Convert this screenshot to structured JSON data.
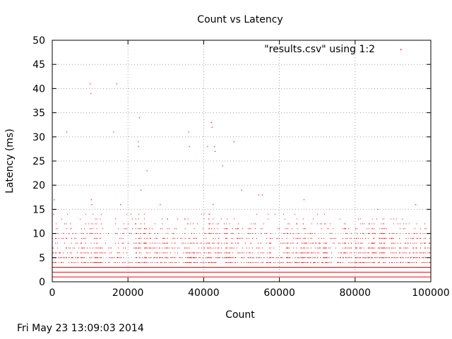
{
  "chart_data": {
    "type": "scatter",
    "title": "Count vs Latency",
    "xlabel": "Count",
    "ylabel": "Latency (ms)",
    "xlim": [
      0,
      100000
    ],
    "ylim": [
      0,
      50
    ],
    "xticks": [
      0,
      20000,
      40000,
      60000,
      80000,
      100000
    ],
    "yticks": [
      0,
      5,
      10,
      15,
      20,
      25,
      30,
      35,
      40,
      45,
      50
    ],
    "grid": true,
    "legend_position": "top-right",
    "series": [
      {
        "name": "\"results.csv\" using 1:2",
        "color": "#ff0000",
        "baseline_levels": [
          1,
          2,
          3
        ],
        "band_levels": [
          4,
          5,
          6,
          7,
          8,
          9,
          10,
          11,
          12,
          13,
          14
        ],
        "clusters": [
          {
            "x": [
              0,
              4000
            ],
            "y": [
              3,
              13
            ]
          },
          {
            "x": [
              5000,
              9000
            ],
            "y": [
              3,
              11
            ]
          },
          {
            "x": [
              10000,
              13000
            ],
            "y": [
              3,
              13
            ]
          },
          {
            "x": [
              17000,
              19000
            ],
            "y": [
              3,
              10
            ]
          },
          {
            "x": [
              22000,
              26000
            ],
            "y": [
              3,
              14
            ]
          },
          {
            "x": [
              27000,
              29000
            ],
            "y": [
              3,
              12
            ]
          },
          {
            "x": [
              29000,
              33000
            ],
            "y": [
              3,
              13
            ]
          },
          {
            "x": [
              35000,
              38000
            ],
            "y": [
              3,
              14
            ]
          },
          {
            "x": [
              40000,
              44000
            ],
            "y": [
              3,
              14
            ]
          },
          {
            "x": [
              45000,
              49000
            ],
            "y": [
              3,
              14
            ]
          },
          {
            "x": [
              51000,
              53000
            ],
            "y": [
              3,
              13
            ]
          },
          {
            "x": [
              55000,
              58000
            ],
            "y": [
              3,
              14
            ]
          },
          {
            "x": [
              60000,
              62000
            ],
            "y": [
              3,
              12
            ]
          },
          {
            "x": [
              62000,
              66000
            ],
            "y": [
              3,
              13
            ]
          },
          {
            "x": [
              66000,
              69000
            ],
            "y": [
              3,
              14
            ]
          },
          {
            "x": [
              69000,
              73000
            ],
            "y": [
              3,
              12
            ]
          },
          {
            "x": [
              75000,
              79000
            ],
            "y": [
              3,
              11
            ]
          },
          {
            "x": [
              80000,
              84000
            ],
            "y": [
              3,
              13
            ]
          },
          {
            "x": [
              84000,
              88000
            ],
            "y": [
              3,
              14
            ]
          },
          {
            "x": [
              89000,
              92000
            ],
            "y": [
              3,
              13
            ]
          },
          {
            "x": [
              93000,
              97000
            ],
            "y": [
              3,
              14
            ]
          },
          {
            "x": [
              97000,
              100000
            ],
            "y": [
              3,
              12
            ]
          }
        ],
        "outliers": [
          {
            "x": 500,
            "y": 20
          },
          {
            "x": 500,
            "y": 17
          },
          {
            "x": 3800,
            "y": 31
          },
          {
            "x": 10000,
            "y": 41
          },
          {
            "x": 10200,
            "y": 39
          },
          {
            "x": 10300,
            "y": 17
          },
          {
            "x": 10400,
            "y": 16
          },
          {
            "x": 16200,
            "y": 31
          },
          {
            "x": 17000,
            "y": 41
          },
          {
            "x": 18000,
            "y": 16
          },
          {
            "x": 22700,
            "y": 29
          },
          {
            "x": 22800,
            "y": 28
          },
          {
            "x": 23000,
            "y": 34
          },
          {
            "x": 23400,
            "y": 19
          },
          {
            "x": 25000,
            "y": 23
          },
          {
            "x": 28500,
            "y": 16
          },
          {
            "x": 36000,
            "y": 31
          },
          {
            "x": 36200,
            "y": 28
          },
          {
            "x": 41000,
            "y": 28
          },
          {
            "x": 42000,
            "y": 33
          },
          {
            "x": 42200,
            "y": 32
          },
          {
            "x": 42500,
            "y": 16
          },
          {
            "x": 42800,
            "y": 28
          },
          {
            "x": 43000,
            "y": 27
          },
          {
            "x": 45000,
            "y": 24
          },
          {
            "x": 48000,
            "y": 29
          },
          {
            "x": 50000,
            "y": 19
          },
          {
            "x": 54500,
            "y": 18
          },
          {
            "x": 55500,
            "y": 18
          },
          {
            "x": 66500,
            "y": 17
          },
          {
            "x": 86000,
            "y": 15
          },
          {
            "x": 96000,
            "y": 16
          }
        ]
      }
    ]
  },
  "footer": {
    "timestamp": "Fri May 23 13:09:03 2014"
  }
}
